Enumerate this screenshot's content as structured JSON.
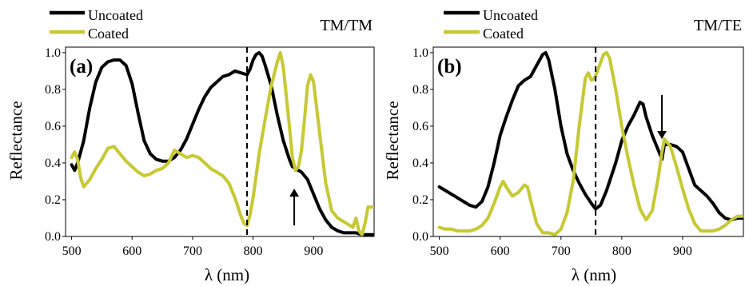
{
  "chart_data": [
    {
      "type": "line",
      "panel_label": "(a)",
      "mode_label": "TM/TM",
      "xlabel": "λ (nm)",
      "ylabel": "Reflectance",
      "xlim": [
        490,
        1000
      ],
      "ylim": [
        0,
        1.03
      ],
      "xticks": [
        "500",
        "600",
        "700",
        "800",
        "900"
      ],
      "xtick_values": [
        500,
        600,
        700,
        800,
        900
      ],
      "yticks": [
        "0.0",
        "0.2",
        "0.4",
        "0.6",
        "0.8",
        "1.0"
      ],
      "ytick_values": [
        0,
        0.2,
        0.4,
        0.6,
        0.8,
        1.0
      ],
      "legend_location": "top-left, outside plot",
      "grid": false,
      "vline": {
        "x": 790,
        "style": "dashed"
      },
      "arrow": {
        "x": 868,
        "from_y": 0.06,
        "to_y": 0.26,
        "direction": "up"
      },
      "series": [
        {
          "name": "Uncoated",
          "color": "#000000",
          "x": [
            500,
            505,
            510,
            520,
            530,
            540,
            550,
            560,
            570,
            580,
            590,
            600,
            610,
            620,
            630,
            640,
            650,
            660,
            670,
            680,
            690,
            700,
            710,
            720,
            730,
            740,
            750,
            760,
            770,
            780,
            790,
            795,
            800,
            805,
            810,
            815,
            820,
            830,
            840,
            850,
            860,
            865,
            870,
            880,
            890,
            900,
            910,
            920,
            930,
            940,
            950,
            960,
            970,
            980,
            990,
            998
          ],
          "y": [
            0.39,
            0.36,
            0.4,
            0.52,
            0.7,
            0.84,
            0.92,
            0.95,
            0.96,
            0.96,
            0.93,
            0.83,
            0.67,
            0.52,
            0.45,
            0.42,
            0.41,
            0.41,
            0.43,
            0.47,
            0.53,
            0.61,
            0.69,
            0.76,
            0.81,
            0.84,
            0.87,
            0.88,
            0.9,
            0.89,
            0.88,
            0.91,
            0.96,
            0.99,
            1.0,
            0.98,
            0.93,
            0.82,
            0.66,
            0.52,
            0.42,
            0.38,
            0.37,
            0.35,
            0.31,
            0.23,
            0.15,
            0.09,
            0.05,
            0.03,
            0.02,
            0.02,
            0.02,
            0.01,
            0.01,
            0.01
          ]
        },
        {
          "name": "Coated",
          "color": "#c8c832",
          "x": [
            500,
            505,
            510,
            515,
            520,
            530,
            540,
            550,
            560,
            570,
            580,
            590,
            600,
            610,
            620,
            630,
            640,
            650,
            660,
            670,
            680,
            690,
            700,
            710,
            720,
            730,
            740,
            750,
            760,
            770,
            780,
            785,
            790,
            795,
            800,
            810,
            820,
            830,
            840,
            845,
            850,
            860,
            865,
            870,
            875,
            880,
            885,
            890,
            895,
            900,
            910,
            920,
            930,
            940,
            950,
            960,
            965,
            970,
            975,
            980,
            985,
            990,
            998
          ],
          "y": [
            0.43,
            0.46,
            0.42,
            0.32,
            0.27,
            0.31,
            0.37,
            0.42,
            0.48,
            0.49,
            0.45,
            0.41,
            0.38,
            0.35,
            0.33,
            0.34,
            0.36,
            0.37,
            0.4,
            0.47,
            0.45,
            0.43,
            0.44,
            0.43,
            0.4,
            0.37,
            0.35,
            0.33,
            0.29,
            0.21,
            0.11,
            0.07,
            0.06,
            0.12,
            0.21,
            0.45,
            0.64,
            0.82,
            0.95,
            1.0,
            0.92,
            0.6,
            0.43,
            0.36,
            0.38,
            0.47,
            0.64,
            0.82,
            0.88,
            0.84,
            0.56,
            0.29,
            0.14,
            0.1,
            0.08,
            0.06,
            0.05,
            0.1,
            0.03,
            0.01,
            0.07,
            0.16,
            0.16
          ]
        }
      ]
    },
    {
      "type": "line",
      "panel_label": "(b)",
      "mode_label": "TM/TE",
      "xlabel": "λ (nm)",
      "ylabel": "Reflectance",
      "xlim": [
        490,
        1000
      ],
      "ylim": [
        0,
        1.03
      ],
      "xticks": [
        "500",
        "600",
        "700",
        "800",
        "900"
      ],
      "xtick_values": [
        500,
        600,
        700,
        800,
        900
      ],
      "yticks": [
        "0.0",
        "0.2",
        "0.4",
        "0.6",
        "0.8",
        "1.0"
      ],
      "ytick_values": [
        0,
        0.2,
        0.4,
        0.6,
        0.8,
        1.0
      ],
      "legend_location": "top-left, outside plot",
      "grid": false,
      "vline": {
        "x": 757,
        "style": "dashed"
      },
      "arrow": {
        "x": 866,
        "from_y": 0.77,
        "to_y": 0.53,
        "direction": "down"
      },
      "series": [
        {
          "name": "Uncoated",
          "color": "#000000",
          "x": [
            500,
            510,
            520,
            530,
            540,
            550,
            560,
            570,
            580,
            590,
            600,
            610,
            620,
            630,
            640,
            650,
            660,
            670,
            675,
            680,
            690,
            700,
            710,
            720,
            730,
            740,
            750,
            757,
            765,
            775,
            790,
            800,
            810,
            820,
            830,
            835,
            840,
            850,
            860,
            866,
            870,
            880,
            890,
            900,
            910,
            920,
            930,
            940,
            950,
            960,
            970,
            980,
            990,
            998
          ],
          "y": [
            0.27,
            0.25,
            0.23,
            0.21,
            0.19,
            0.17,
            0.16,
            0.19,
            0.27,
            0.4,
            0.55,
            0.65,
            0.74,
            0.82,
            0.85,
            0.87,
            0.93,
            0.99,
            1.0,
            0.96,
            0.8,
            0.6,
            0.45,
            0.36,
            0.29,
            0.23,
            0.18,
            0.15,
            0.17,
            0.25,
            0.4,
            0.52,
            0.6,
            0.66,
            0.73,
            0.72,
            0.65,
            0.55,
            0.47,
            0.42,
            0.5,
            0.5,
            0.49,
            0.46,
            0.37,
            0.28,
            0.25,
            0.22,
            0.18,
            0.13,
            0.1,
            0.09,
            0.1,
            0.1
          ]
        },
        {
          "name": "Coated",
          "color": "#c8c832",
          "x": [
            500,
            510,
            520,
            530,
            540,
            550,
            560,
            570,
            580,
            590,
            600,
            605,
            610,
            620,
            630,
            640,
            645,
            650,
            660,
            670,
            680,
            690,
            700,
            710,
            720,
            730,
            740,
            745,
            750,
            755,
            760,
            770,
            775,
            780,
            790,
            800,
            810,
            820,
            830,
            840,
            850,
            860,
            866,
            870,
            880,
            890,
            900,
            910,
            920,
            930,
            940,
            950,
            960,
            970,
            980,
            990,
            998
          ],
          "y": [
            0.05,
            0.04,
            0.04,
            0.03,
            0.03,
            0.03,
            0.04,
            0.06,
            0.1,
            0.18,
            0.27,
            0.3,
            0.27,
            0.22,
            0.24,
            0.28,
            0.27,
            0.2,
            0.07,
            0.02,
            0.02,
            0.01,
            0.04,
            0.13,
            0.3,
            0.6,
            0.86,
            0.89,
            0.85,
            0.86,
            0.9,
            0.99,
            1.0,
            0.97,
            0.8,
            0.6,
            0.43,
            0.28,
            0.15,
            0.09,
            0.14,
            0.32,
            0.46,
            0.53,
            0.49,
            0.38,
            0.26,
            0.15,
            0.07,
            0.03,
            0.03,
            0.03,
            0.04,
            0.06,
            0.09,
            0.11,
            0.11
          ]
        }
      ]
    }
  ]
}
